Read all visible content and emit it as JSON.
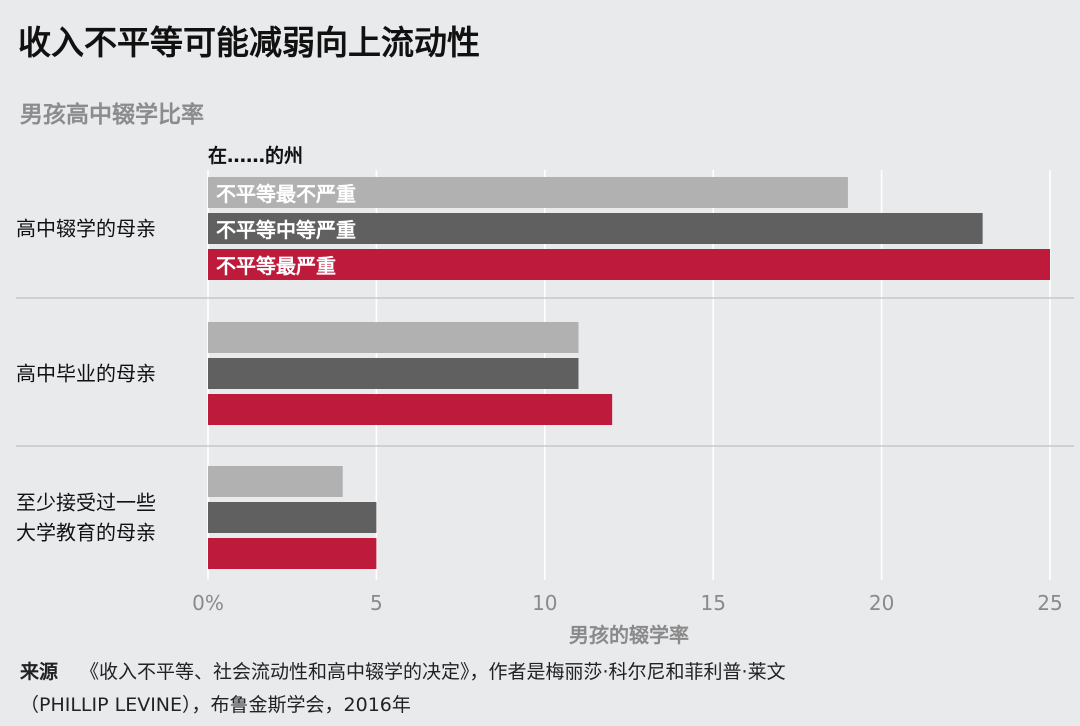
{
  "title": "收入不平等可能减弱向上流动性",
  "subtitle": "男孩高中辍学比率",
  "source": {
    "label": "来源",
    "line1": "《收入不平等、社会流动性和高中辍学的决定》，作者是梅丽莎·科尔尼和菲利普·莱文",
    "line2": "（PHILLIP LEVINE），布鲁金斯学会，2016年"
  },
  "chart_data": {
    "type": "bar",
    "orientation": "horizontal",
    "legend_title": "在……的州",
    "categories": [
      "高中辍学的母亲",
      "高中毕业的母亲",
      "至少接受过一些大学教育的母亲"
    ],
    "category_lines": [
      [
        "高中辍学的母亲"
      ],
      [
        "高中毕业的母亲"
      ],
      [
        "至少接受过一些",
        "大学教育的母亲"
      ]
    ],
    "series": [
      {
        "name": "不平等最不严重",
        "color": "#b1b1b1",
        "values": [
          19,
          11,
          4
        ]
      },
      {
        "name": "不平等中等严重",
        "color": "#606060",
        "values": [
          23,
          11,
          5
        ]
      },
      {
        "name": "不平等最严重",
        "color": "#be1a3b",
        "values": [
          25,
          12,
          5
        ]
      }
    ],
    "xlim": [
      0,
      25
    ],
    "xticks": [
      0,
      5,
      10,
      15,
      20,
      25
    ],
    "xtick_labels": [
      "0%",
      "5",
      "10",
      "15",
      "20",
      "25"
    ],
    "xlabel": "男孩的辍学率",
    "grid": true
  }
}
